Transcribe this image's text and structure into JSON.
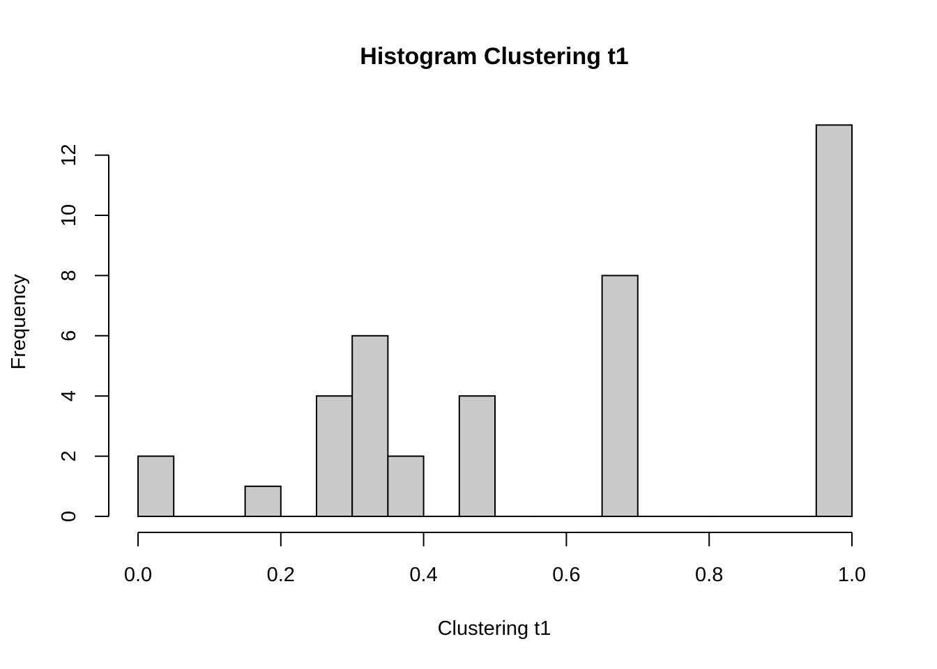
{
  "chart_data": {
    "type": "bar",
    "title": "Histogram Clustering t1",
    "xlabel": "Clustering t1",
    "ylabel": "Frequency",
    "bin_width": 0.05,
    "bins": [
      {
        "start": 0.0,
        "end": 0.05,
        "count": 2
      },
      {
        "start": 0.05,
        "end": 0.1,
        "count": 0
      },
      {
        "start": 0.1,
        "end": 0.15,
        "count": 0
      },
      {
        "start": 0.15,
        "end": 0.2,
        "count": 1
      },
      {
        "start": 0.2,
        "end": 0.25,
        "count": 0
      },
      {
        "start": 0.25,
        "end": 0.3,
        "count": 4
      },
      {
        "start": 0.3,
        "end": 0.35,
        "count": 6
      },
      {
        "start": 0.35,
        "end": 0.4,
        "count": 2
      },
      {
        "start": 0.4,
        "end": 0.45,
        "count": 0
      },
      {
        "start": 0.45,
        "end": 0.5,
        "count": 4
      },
      {
        "start": 0.5,
        "end": 0.55,
        "count": 0
      },
      {
        "start": 0.55,
        "end": 0.6,
        "count": 0
      },
      {
        "start": 0.6,
        "end": 0.65,
        "count": 0
      },
      {
        "start": 0.65,
        "end": 0.7,
        "count": 8
      },
      {
        "start": 0.7,
        "end": 0.75,
        "count": 0
      },
      {
        "start": 0.75,
        "end": 0.8,
        "count": 0
      },
      {
        "start": 0.8,
        "end": 0.85,
        "count": 0
      },
      {
        "start": 0.85,
        "end": 0.9,
        "count": 0
      },
      {
        "start": 0.9,
        "end": 0.95,
        "count": 0
      },
      {
        "start": 0.95,
        "end": 1.0,
        "count": 13
      }
    ],
    "xlim": [
      0,
      1
    ],
    "ylim": [
      0,
      13
    ],
    "x_ticks": [
      0.0,
      0.2,
      0.4,
      0.6,
      0.8,
      1.0
    ],
    "x_tick_labels": [
      "0.0",
      "0.2",
      "0.4",
      "0.6",
      "0.8",
      "1.0"
    ],
    "y_ticks": [
      0,
      2,
      4,
      6,
      8,
      10,
      12
    ],
    "y_tick_labels": [
      "0",
      "2",
      "4",
      "6",
      "8",
      "10",
      "12"
    ],
    "grid": false,
    "legend": "none",
    "bar_color": "#cacaca",
    "bar_edge_color": "#000000"
  }
}
